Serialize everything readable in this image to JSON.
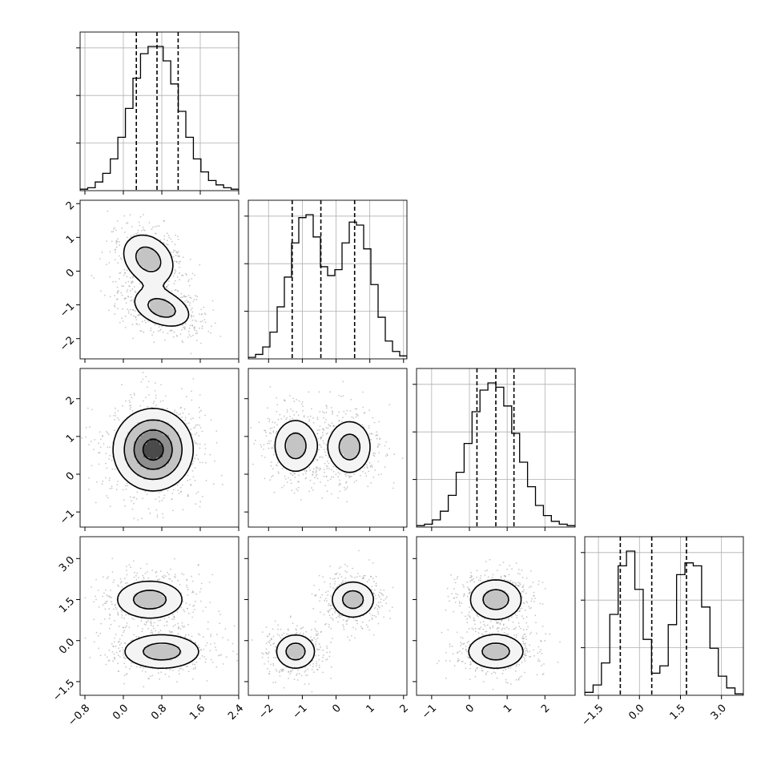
{
  "chart_data": {
    "type": "corner",
    "style": {
      "background": "#ffffff",
      "line_color": "#000000",
      "grid_color": "#b0b0b0",
      "scatter_color": "#9a9a9a"
    },
    "parameters": [
      {
        "range": [
          -0.9,
          2.4
        ],
        "ticks": [
          -0.8,
          0.0,
          0.8,
          1.6,
          2.4
        ],
        "tick_labels": [
          "−0.8",
          "0.0",
          "0.8",
          "1.6",
          "2.4"
        ]
      },
      {
        "range": [
          -2.6,
          2.1
        ],
        "ticks": [
          -2,
          -1,
          0,
          1,
          2
        ],
        "tick_labels": [
          "−2",
          "−1",
          "0",
          "1",
          "2"
        ]
      },
      {
        "range": [
          -1.4,
          2.8
        ],
        "ticks": [
          -1,
          0,
          1,
          2
        ],
        "tick_labels": [
          "−1",
          "0",
          "1",
          "2"
        ]
      },
      {
        "range": [
          -2.0,
          3.8
        ],
        "ticks": [
          -1.5,
          0.0,
          1.5,
          3.0
        ],
        "tick_labels": [
          "−1.5",
          "0.0",
          "1.5",
          "3.0"
        ]
      }
    ],
    "histograms": [
      {
        "quantiles": [
          0.27,
          0.7,
          1.14
        ],
        "counts": [
          0.01,
          0.02,
          0.06,
          0.12,
          0.22,
          0.37,
          0.57,
          0.78,
          0.95,
          1.0,
          1.0,
          0.9,
          0.74,
          0.55,
          0.37,
          0.22,
          0.13,
          0.07,
          0.04,
          0.02,
          0.01
        ]
      },
      {
        "quantiles": [
          -1.3,
          -0.45,
          0.55
        ],
        "counts": [
          0.01,
          0.03,
          0.08,
          0.18,
          0.35,
          0.55,
          0.78,
          0.95,
          0.97,
          0.82,
          0.62,
          0.56,
          0.6,
          0.78,
          0.92,
          0.9,
          0.74,
          0.5,
          0.28,
          0.12,
          0.05,
          0.02
        ]
      },
      {
        "quantiles": [
          0.2,
          0.7,
          1.18
        ],
        "counts": [
          0.01,
          0.02,
          0.05,
          0.11,
          0.22,
          0.38,
          0.58,
          0.8,
          0.95,
          1.0,
          0.97,
          0.84,
          0.65,
          0.45,
          0.28,
          0.15,
          0.08,
          0.04,
          0.02,
          0.01
        ]
      },
      {
        "quantiles": [
          -0.7,
          0.45,
          1.72
        ],
        "counts": [
          0.02,
          0.07,
          0.22,
          0.55,
          0.88,
          0.98,
          0.72,
          0.38,
          0.15,
          0.2,
          0.48,
          0.82,
          0.9,
          0.88,
          0.6,
          0.32,
          0.13,
          0.05,
          0.01
        ]
      }
    ],
    "joint": [
      {
        "x": 0,
        "y": 1,
        "modes": [
          [
            0.52,
            0.35,
            0.32,
            0.45,
            -0.25
          ],
          [
            0.8,
            -1.1,
            0.35,
            0.33,
            -0.35
          ]
        ]
      },
      {
        "x": 0,
        "y": 2,
        "modes": [
          [
            0.62,
            0.65,
            0.42,
            0.55,
            0.0
          ]
        ]
      },
      {
        "x": 1,
        "y": 2,
        "modes": [
          [
            -1.2,
            0.75,
            0.38,
            0.42,
            0.0
          ],
          [
            0.4,
            0.72,
            0.38,
            0.42,
            0.0
          ]
        ]
      },
      {
        "x": 0,
        "y": 3,
        "modes": [
          [
            0.55,
            1.5,
            0.42,
            0.42,
            0.0
          ],
          [
            0.8,
            -0.4,
            0.48,
            0.38,
            0.0
          ]
        ]
      },
      {
        "x": 1,
        "y": 3,
        "modes": [
          [
            -1.2,
            -0.4,
            0.35,
            0.38,
            0.0
          ],
          [
            0.5,
            1.5,
            0.38,
            0.4,
            0.0
          ]
        ]
      },
      {
        "x": 2,
        "y": 3,
        "modes": [
          [
            0.7,
            1.5,
            0.42,
            0.45,
            0.0
          ],
          [
            0.7,
            -0.4,
            0.45,
            0.38,
            0.0
          ]
        ]
      }
    ]
  }
}
